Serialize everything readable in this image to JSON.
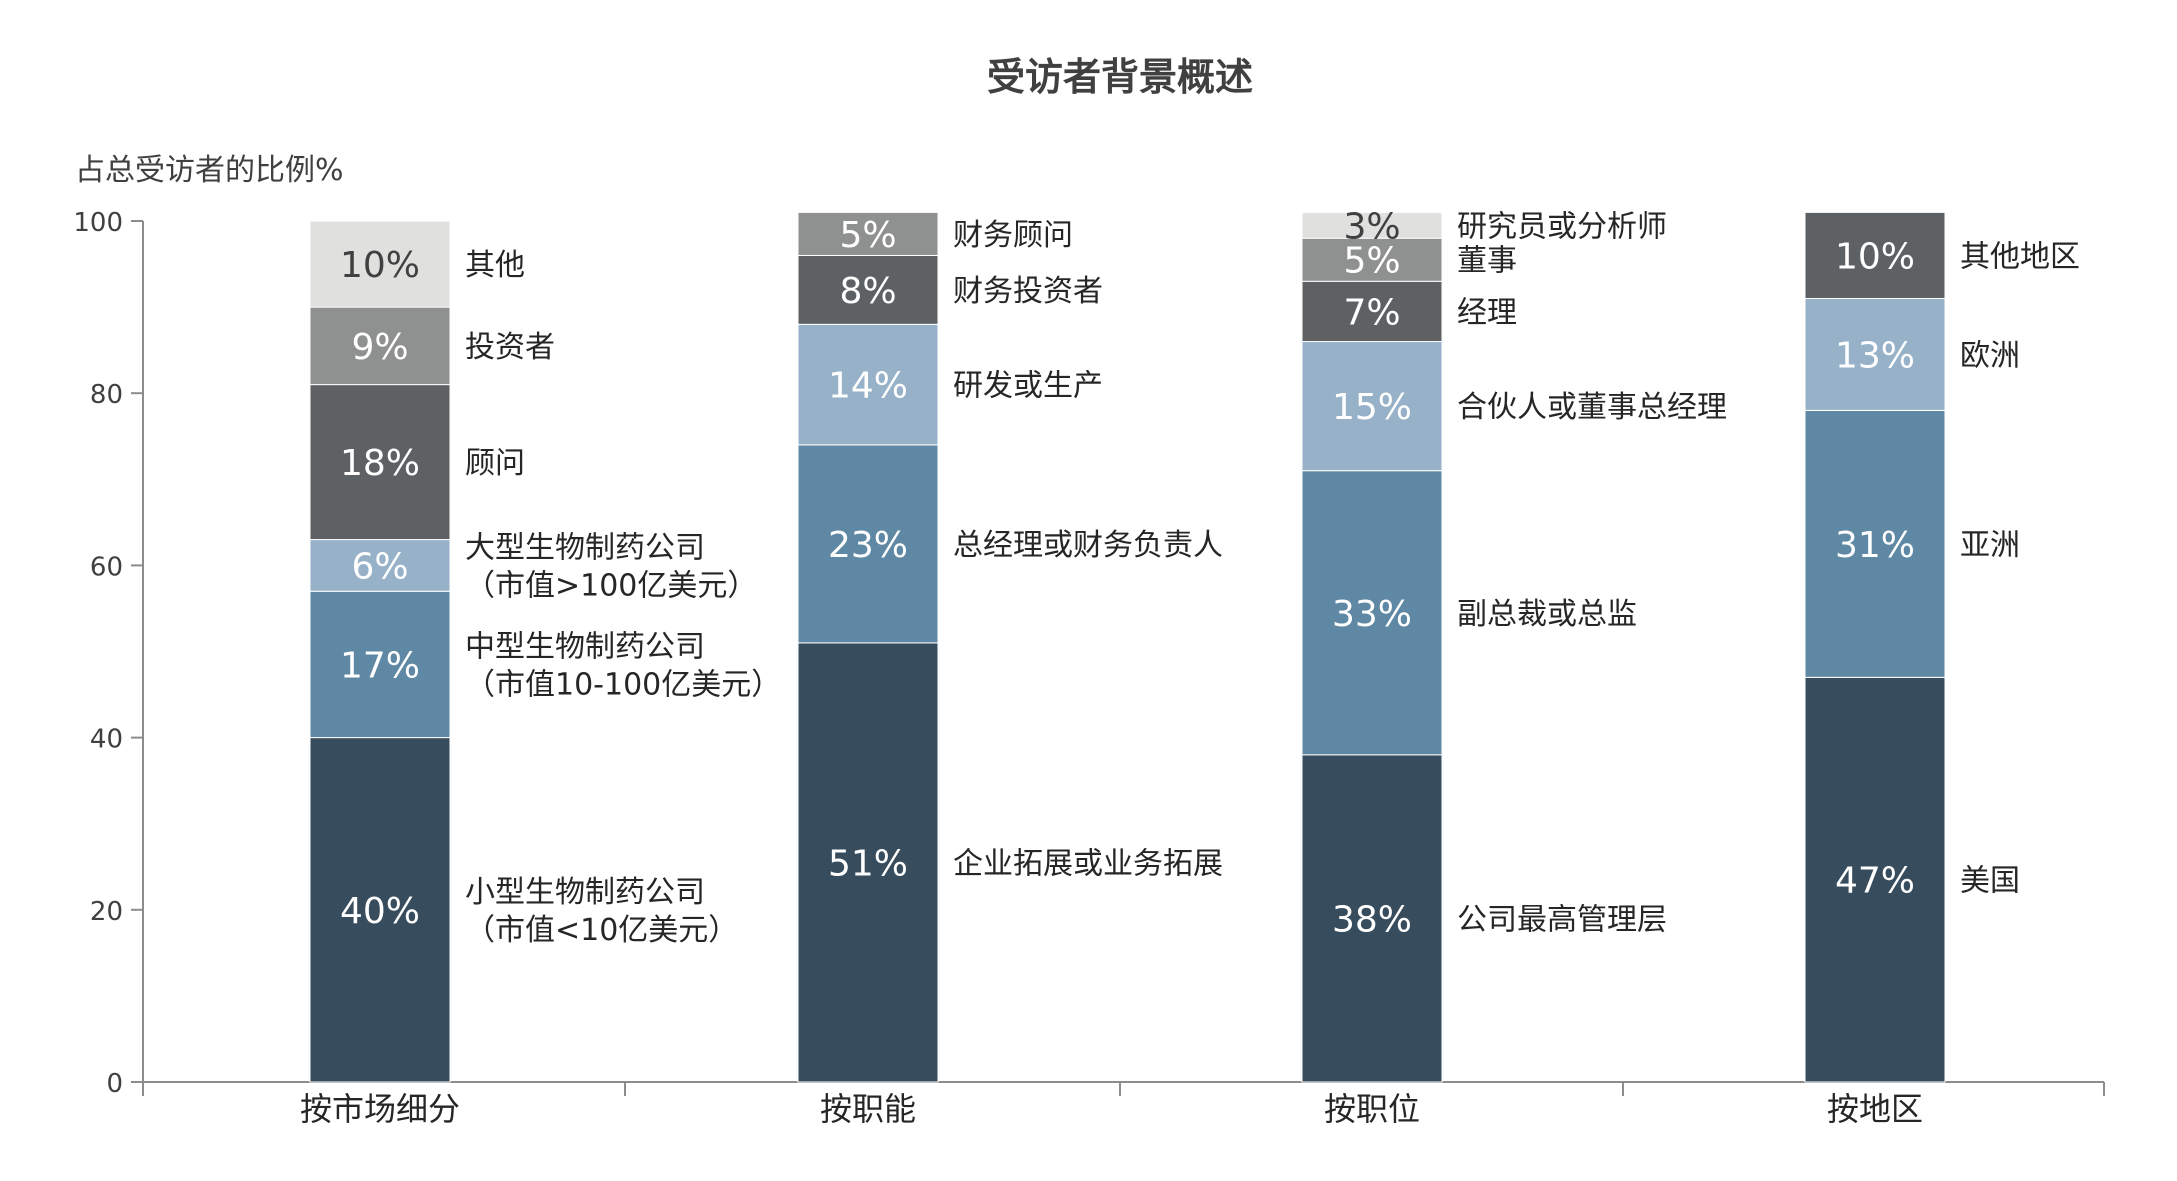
{
  "chart_data": {
    "type": "bar",
    "stacked": true,
    "title": "受访者背景概述",
    "ylabel": "占总受访者的比例%",
    "ylim": [
      0,
      100
    ],
    "yticks": [
      0,
      20,
      40,
      60,
      80,
      100
    ],
    "grid": false,
    "legend": "none",
    "categories": [
      "按市场细分",
      "按职能",
      "按职位",
      "按地区"
    ],
    "stacks": [
      {
        "category": "按市场细分",
        "segments": [
          {
            "name": "小型生物制药公司\n（市值<10亿美元）",
            "value": 40,
            "label": "40%",
            "color": "#374c5c"
          },
          {
            "name": "中型生物制药公司\n（市值10-100亿美元）",
            "value": 17,
            "label": "17%",
            "color": "#5e88a3"
          },
          {
            "name": "大型生物制药公司\n（市值>100亿美元）",
            "value": 6,
            "label": "6%",
            "color": "#97b2c8"
          },
          {
            "name": "顾问",
            "value": 18,
            "label": "18%",
            "color": "#5e6163"
          },
          {
            "name": "投资者",
            "value": 9,
            "label": "9%",
            "color": "#8f9090"
          },
          {
            "name": "其他",
            "value": 10,
            "label": "10%",
            "color": "#e0e0de"
          }
        ]
      },
      {
        "category": "按职能",
        "segments": [
          {
            "name": "企业拓展或业务拓展",
            "value": 51,
            "label": "51%",
            "color": "#374c5c"
          },
          {
            "name": "总经理或财务负责人",
            "value": 23,
            "label": "23%",
            "color": "#5e88a3"
          },
          {
            "name": "研发或生产",
            "value": 14,
            "label": "14%",
            "color": "#97b2c8"
          },
          {
            "name": "财务投资者",
            "value": 8,
            "label": "8%",
            "color": "#5e6163"
          },
          {
            "name": "财务顾问",
            "value": 5,
            "label": "5%",
            "color": "#8f9090"
          }
        ]
      },
      {
        "category": "按职位",
        "segments": [
          {
            "name": "公司最高管理层",
            "value": 38,
            "label": "38%",
            "color": "#374c5c"
          },
          {
            "name": "副总裁或总监",
            "value": 33,
            "label": "33%",
            "color": "#5e88a3"
          },
          {
            "name": "合伙人或董事总经理",
            "value": 15,
            "label": "15%",
            "color": "#97b2c8"
          },
          {
            "name": "经理",
            "value": 7,
            "label": "7%",
            "color": "#5e6163"
          },
          {
            "name": "董事",
            "value": 5,
            "label": "5%",
            "color": "#8f9090"
          },
          {
            "name": "研究员或分析师",
            "value": 3,
            "label": "3%",
            "color": "#e0e0de"
          }
        ]
      },
      {
        "category": "按地区",
        "segments": [
          {
            "name": "美国",
            "value": 47,
            "label": "47%",
            "color": "#374c5c"
          },
          {
            "name": "亚洲",
            "value": 31,
            "label": "31%",
            "color": "#5e88a3"
          },
          {
            "name": "欧洲",
            "value": 13,
            "label": "13%",
            "color": "#97b2c8"
          },
          {
            "name": "其他地区",
            "value": 10,
            "label": "10%",
            "color": "#5e6163"
          }
        ]
      }
    ]
  }
}
